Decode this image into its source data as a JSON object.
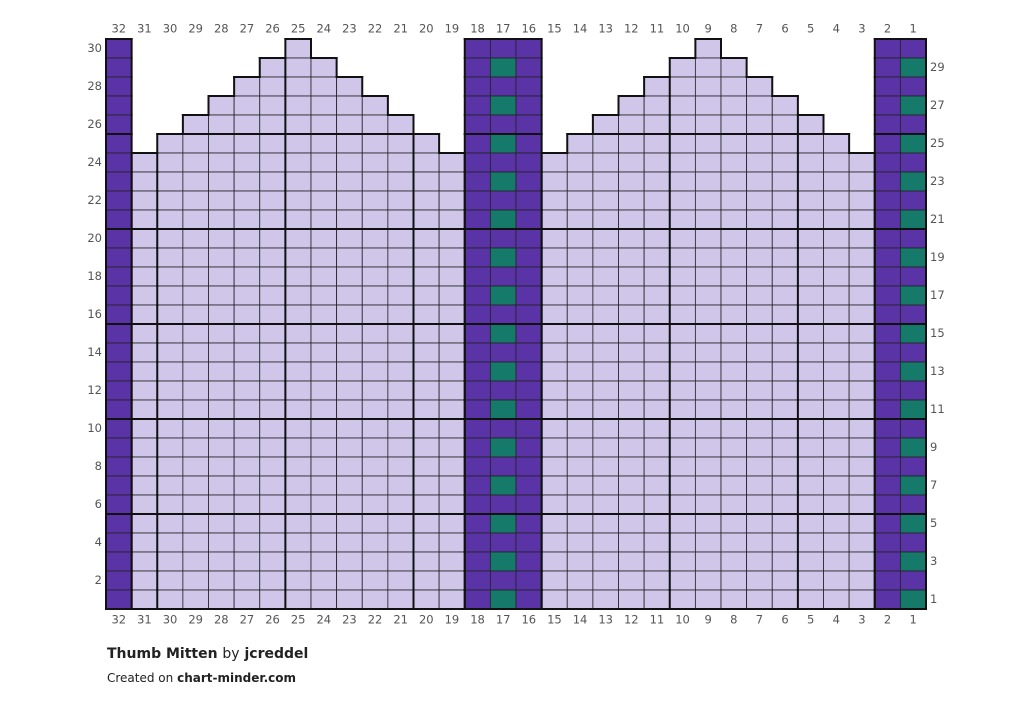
{
  "grid": {
    "colors": {
      "D": "#5a34a6",
      "L": "#cfc6e9",
      "T": "#167a6b"
    },
    "column_labels": [
      32,
      31,
      30,
      29,
      28,
      27,
      26,
      25,
      24,
      23,
      22,
      21,
      20,
      19,
      18,
      17,
      16,
      15,
      14,
      13,
      12,
      11,
      10,
      9,
      8,
      7,
      6,
      5,
      4,
      3,
      2,
      1
    ],
    "left_row_labels": [
      30,
      28,
      26,
      24,
      22,
      20,
      18,
      16,
      14,
      12,
      10,
      8,
      6,
      4,
      2
    ],
    "right_row_labels": [
      29,
      27,
      25,
      23,
      21,
      19,
      17,
      15,
      13,
      11,
      9,
      7,
      5,
      3,
      1
    ],
    "rows": [
      "D......L......DDD......L......DD",
      "D.....LLL.....DTD.....LLL.....DT",
      "D....LLLLL....DDD....LLLLL....DD",
      "D...LLLLLLL...DTD...LLLLLLL...DT",
      "D..LLLLLLLLL..DDD..LLLLLLLLL..DD",
      "D.LLLLLLLLLLL.DTD.LLLLLLLLLLL.DT",
      "DLLLLLLLLLLLLLDDDLLLLLLLLLLLLLDD",
      "DLLLLLLLLLLLLLDTDLLLLLLLLLLLLLDT",
      "DLLLLLLLLLLLLLDDDLLLLLLLLLLLLLDD",
      "DLLLLLLLLLLLLLDTDLLLLLLLLLLLLLDT",
      "DLLLLLLLLLLLLLDDDLLLLLLLLLLLLLDD",
      "DLLLLLLLLLLLLLDTDLLLLLLLLLLLLLDT",
      "DLLLLLLLLLLLLLDDDLLLLLLLLLLLLLDD",
      "DLLLLLLLLLLLLLDTDLLLLLLLLLLLLLDT",
      "DLLLLLLLLLLLLLDDDLLLLLLLLLLLLLDD",
      "DLLLLLLLLLLLLLDTDLLLLLLLLLLLLLDT",
      "DLLLLLLLLLLLLLDDDLLLLLLLLLLLLLDD",
      "DLLLLLLLLLLLLLDTDLLLLLLLLLLLLLDT",
      "DLLLLLLLLLLLLLDDDLLLLLLLLLLLLLDD",
      "DLLLLLLLLLLLLLDTDLLLLLLLLLLLLLDT",
      "DLLLLLLLLLLLLLDDDLLLLLLLLLLLLLDD",
      "DLLLLLLLLLLLLLDTDLLLLLLLLLLLLLDT",
      "DLLLLLLLLLLLLLDDDLLLLLLLLLLLLLDD",
      "DLLLLLLLLLLLLLDTDLLLLLLLLLLLLLDT",
      "DLLLLLLLLLLLLLDDDLLLLLLLLLLLLLDD",
      "DLLLLLLLLLLLLLDTDLLLLLLLLLLLLLDT",
      "DLLLLLLLLLLLLLDDDLLLLLLLLLLLLLDD",
      "DLLLLLLLLLLLLLDTDLLLLLLLLLLLLLDT",
      "DLLLLLLLLLLLLLDDDLLLLLLLLLLLLLDD",
      "DLLLLLLLLLLLLLDTDLLLLLLLLLLLLLDT"
    ]
  },
  "footer": {
    "title": "Thumb Mitten",
    "by": "by",
    "author": "jcreddel",
    "created_prefix": "Created on",
    "site": "chart-minder.com"
  }
}
